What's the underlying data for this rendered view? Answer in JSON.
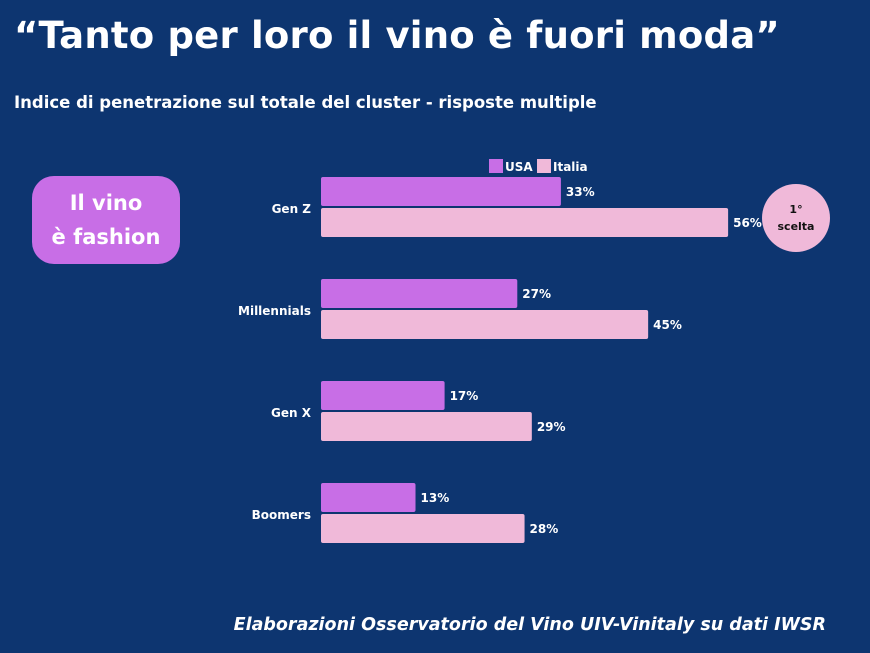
{
  "title": "“Tanto per loro il vino è fuori moda”",
  "subtitle": "Indice di penetrazione sul totale del cluster - risposte multiple",
  "callout": {
    "line1": "Il vino",
    "line2": "è fashion"
  },
  "badge": {
    "line1": "1°",
    "line2": "scelta"
  },
  "source": "Elaborazioni Osservatorio del Vino UIV-Vinitaly su dati IWSR",
  "colors": {
    "background": "#0d3570",
    "usa": "#c86ee6",
    "italia": "#f0b9d9",
    "text": "#ffffff"
  },
  "chart_data": {
    "type": "bar",
    "orientation": "horizontal",
    "categories": [
      "Gen Z",
      "Millennials",
      "Gen X",
      "Boomers"
    ],
    "series": [
      {
        "name": "USA",
        "values": [
          33,
          27,
          17,
          13
        ],
        "labels": [
          "33%",
          "27%",
          "17%",
          "13%"
        ]
      },
      {
        "name": "Italia",
        "values": [
          56,
          45,
          29,
          28
        ],
        "labels": [
          "56%",
          "45%",
          "29%",
          "28%"
        ]
      }
    ],
    "unit": "%",
    "xlim": [
      0,
      56
    ],
    "legend": "top",
    "grid": false
  }
}
